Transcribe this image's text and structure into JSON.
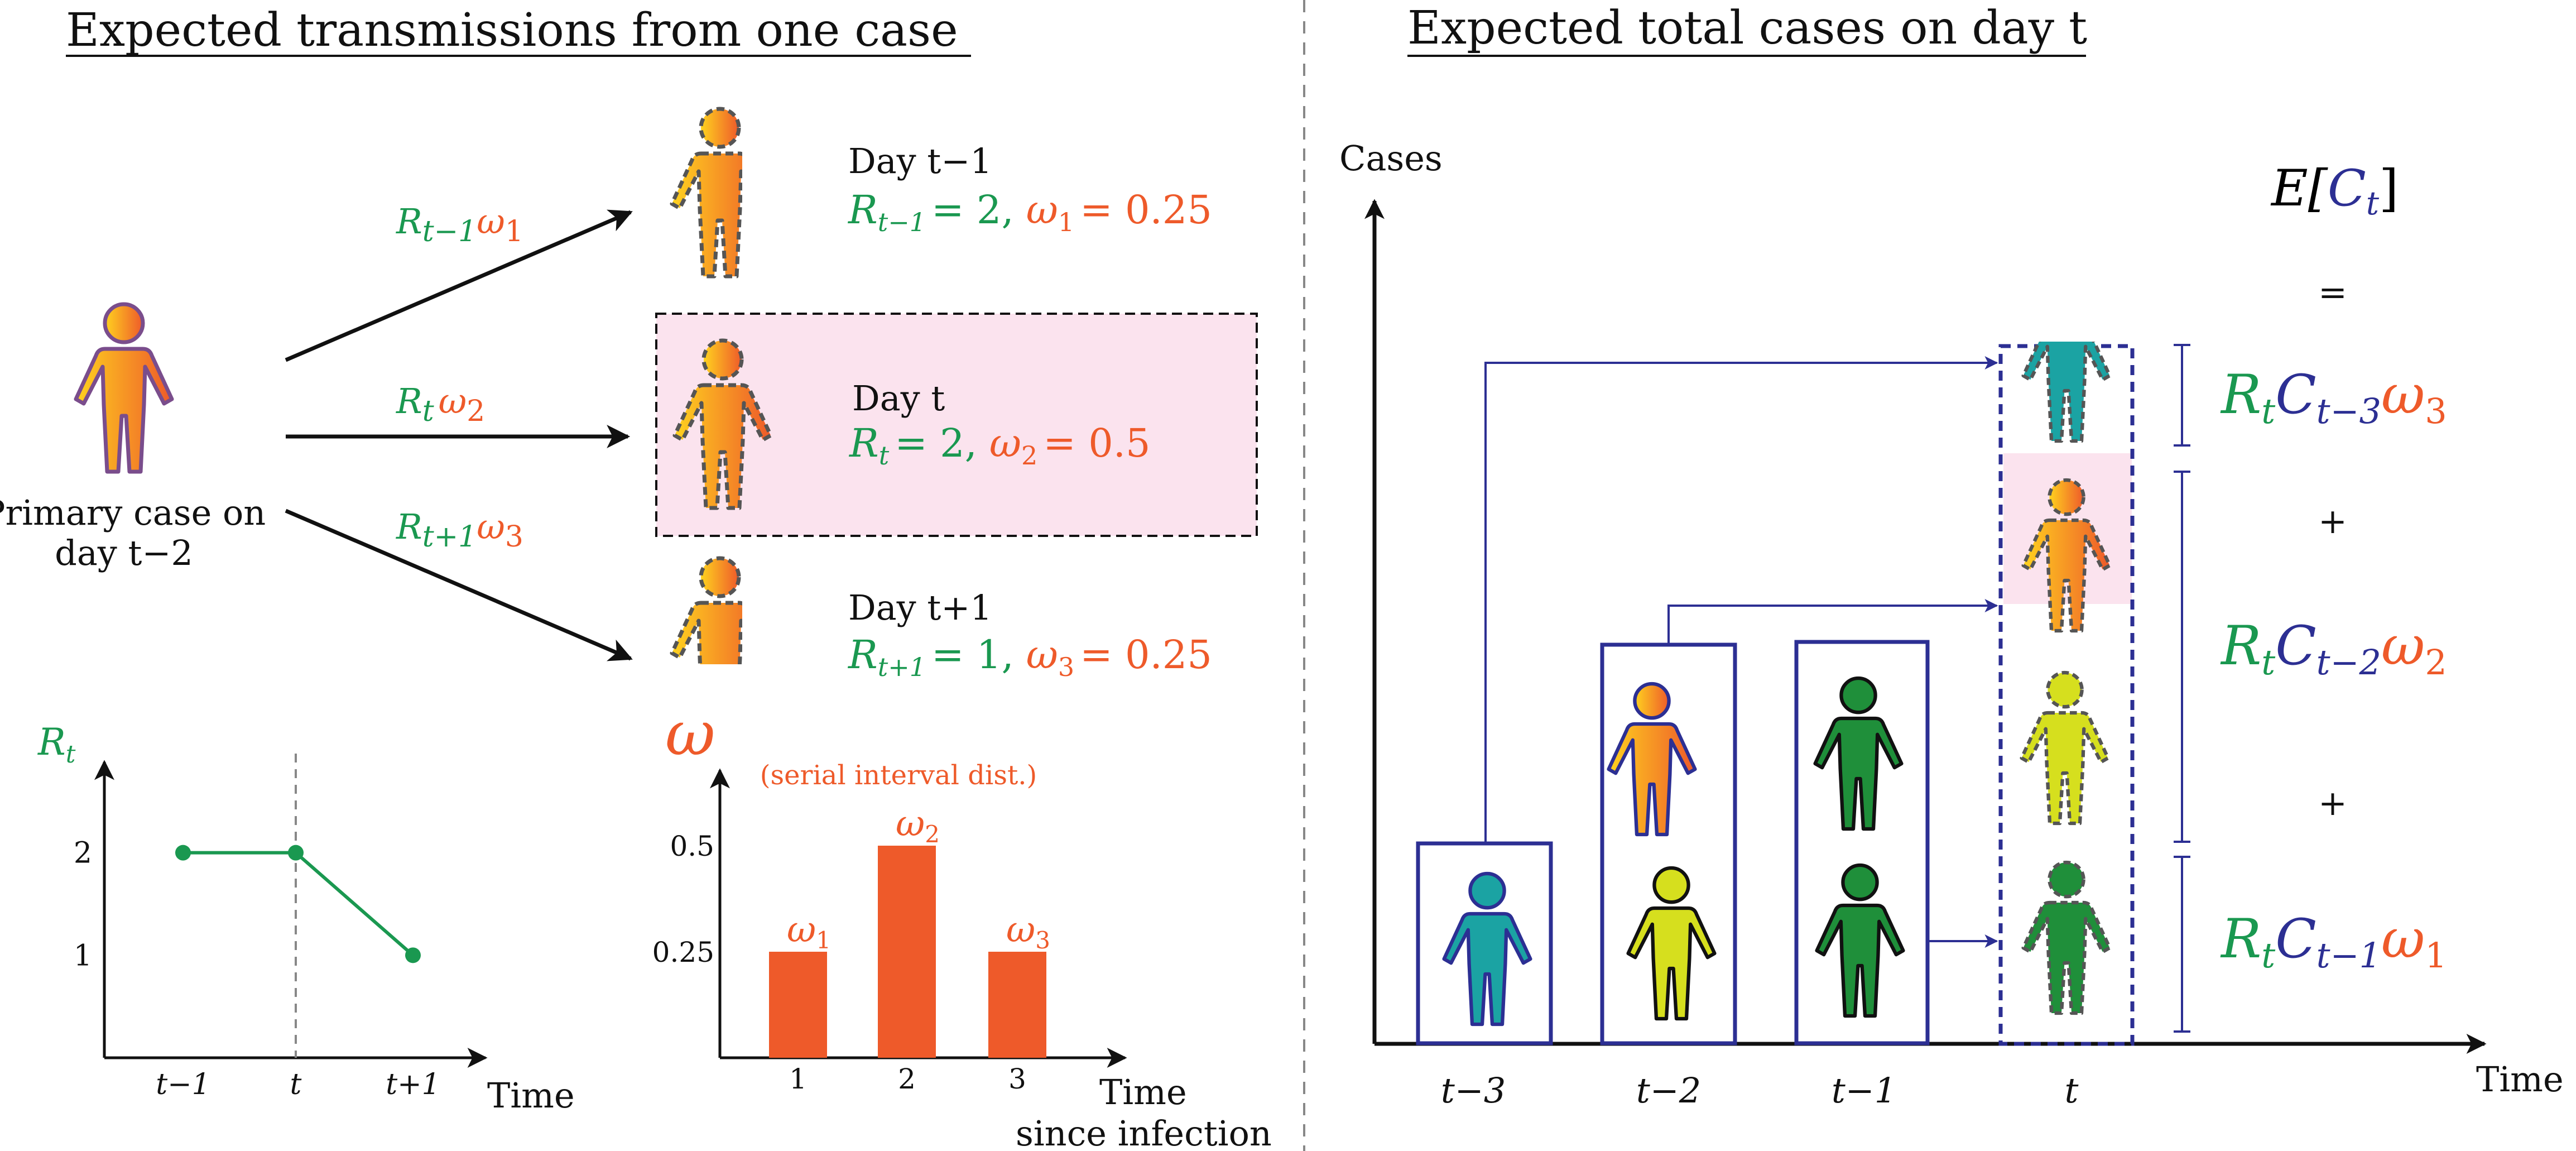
{
  "colors": {
    "green": "#1a9850",
    "orange": "#ee5a2a",
    "navy": "#2c2f93",
    "pink": "#fbe3ee",
    "person_teal": "#1ba3a3",
    "person_yellow": "#d6df1e",
    "person_green": "#1f8f3a",
    "person_gradient": [
      "#ffd21f",
      "#ee5a2a"
    ]
  },
  "left": {
    "title": "Expected transmissions from one case",
    "primary_case": {
      "line1": "Primary case on",
      "line2": "day t−2"
    },
    "arrows": {
      "a1": {
        "R": "R",
        "sub": "t−1",
        "w": "ω",
        "wsub": "1"
      },
      "a2": {
        "R": "R",
        "sub": "t",
        "w": "ω",
        "wsub": "2"
      },
      "a3": {
        "R": "R",
        "sub": "t+1",
        "w": "ω",
        "wsub": "3"
      }
    },
    "days": [
      {
        "day": "Day t−1",
        "R": "R",
        "Rsub": "t−1",
        "Rval": "= 2,",
        "w": "ω",
        "wsub": "1",
        "wval": "= 0.25"
      },
      {
        "day": "Day t",
        "R": "R",
        "Rsub": "t",
        "Rval": "= 2,",
        "w": "ω",
        "wsub": "2",
        "wval": "= 0.5"
      },
      {
        "day": "Day t+1",
        "R": "R",
        "Rsub": "t+1",
        "Rval": "= 1,",
        "w": "ω",
        "wsub": "3",
        "wval": "= 0.25"
      }
    ]
  },
  "rt_chart": {
    "ylabel": "R",
    "ylabel_sub": "t",
    "xlabel": "Time",
    "ticks_x": [
      "t−1",
      "t",
      "t+1"
    ],
    "ticks_y": [
      "1",
      "2"
    ],
    "chart_data": {
      "type": "line",
      "x": [
        "t−1",
        "t",
        "t+1"
      ],
      "values": [
        2,
        2,
        1
      ],
      "ylim": [
        0,
        3
      ],
      "marker_line_at": "t"
    }
  },
  "omega_chart": {
    "ylabel": "ω",
    "subtitle": "(serial interval dist.)",
    "xlabel_line1": "Time",
    "xlabel_line2": "since infection",
    "ticks_x": [
      "1",
      "2",
      "3"
    ],
    "ticks_y": [
      "0.25",
      "0.5"
    ],
    "bar_labels": [
      {
        "w": "ω",
        "sub": "1"
      },
      {
        "w": "ω",
        "sub": "2"
      },
      {
        "w": "ω",
        "sub": "3"
      }
    ],
    "chart_data": {
      "type": "bar",
      "categories": [
        "1",
        "2",
        "3"
      ],
      "values": [
        0.25,
        0.5,
        0.25
      ],
      "ylim": [
        0,
        0.65
      ]
    }
  },
  "right": {
    "title": "Expected total cases on day t",
    "ylabel": "Cases",
    "xlabel": "Time",
    "ticks_x": [
      "t−3",
      "t−2",
      "t−1",
      "t"
    ],
    "expectation": {
      "E": "E[",
      "C": "C",
      "sub": "t",
      "close": "]",
      "eq": "="
    },
    "terms": [
      {
        "R": "R",
        "Rsub": "t",
        "C": "C",
        "Csub": "t−3",
        "w": "ω",
        "wsub": "3"
      },
      {
        "R": "R",
        "Rsub": "t",
        "C": "C",
        "Csub": "t−2",
        "w": "ω",
        "wsub": "2"
      },
      {
        "R": "R",
        "Rsub": "t",
        "C": "C",
        "Csub": "t−1",
        "w": "ω",
        "wsub": "1"
      }
    ],
    "plus": "+"
  }
}
